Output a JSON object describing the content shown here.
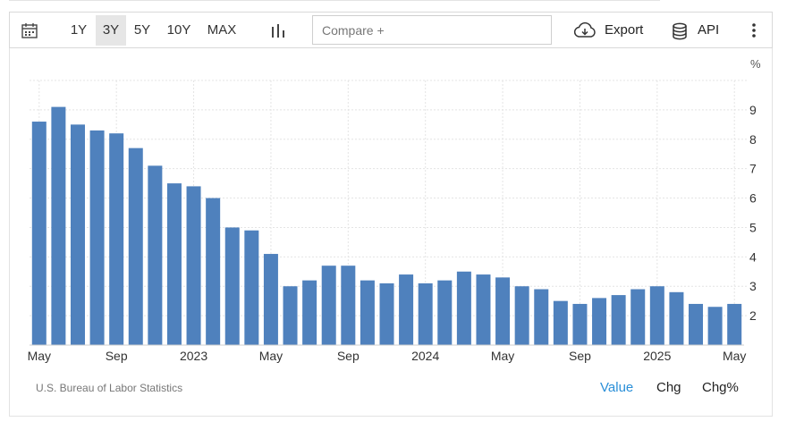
{
  "toolbar": {
    "calendar_icon": "calendar-icon",
    "ranges": [
      "1Y",
      "3Y",
      "5Y",
      "10Y",
      "MAX"
    ],
    "active_range": "3Y",
    "chart_type_icon": "bar-chart-icon",
    "compare_placeholder": "Compare +",
    "export_label": "Export",
    "export_icon": "cloud-download-icon",
    "api_label": "API",
    "api_icon": "database-icon",
    "more_icon": "more-vertical-icon"
  },
  "source_label": "U.S. Bureau of Labor Statistics",
  "view_tabs": [
    "Value",
    "Chg",
    "Chg%"
  ],
  "active_view": "Value",
  "colors": {
    "bar": "#4f81bd",
    "active_tab": "#2a8fd8"
  },
  "chart_data": {
    "type": "bar",
    "title": "",
    "xlabel": "",
    "ylabel": "",
    "unit_label": "%",
    "x": [
      "2022-05",
      "2022-06",
      "2022-07",
      "2022-08",
      "2022-09",
      "2022-10",
      "2022-11",
      "2022-12",
      "2023-01",
      "2023-02",
      "2023-03",
      "2023-04",
      "2023-05",
      "2023-06",
      "2023-07",
      "2023-08",
      "2023-09",
      "2023-10",
      "2023-11",
      "2023-12",
      "2024-01",
      "2024-02",
      "2024-03",
      "2024-04",
      "2024-05",
      "2024-06",
      "2024-07",
      "2024-08",
      "2024-09",
      "2024-10",
      "2024-11",
      "2024-12",
      "2025-01",
      "2025-02",
      "2025-03",
      "2025-04",
      "2025-05"
    ],
    "values": [
      8.6,
      9.1,
      8.5,
      8.3,
      8.2,
      7.7,
      7.1,
      6.5,
      6.4,
      6.0,
      5.0,
      4.9,
      4.1,
      3.0,
      3.2,
      3.7,
      3.7,
      3.2,
      3.1,
      3.4,
      3.1,
      3.2,
      3.5,
      3.4,
      3.3,
      3.0,
      2.9,
      2.5,
      2.4,
      2.6,
      2.7,
      2.9,
      3.0,
      2.8,
      2.4,
      2.3,
      2.4
    ],
    "x_tick_labels": [
      {
        "x": "2022-05",
        "label": "May"
      },
      {
        "x": "2022-09",
        "label": "Sep"
      },
      {
        "x": "2023-01",
        "label": "2023"
      },
      {
        "x": "2023-05",
        "label": "May"
      },
      {
        "x": "2023-09",
        "label": "Sep"
      },
      {
        "x": "2024-01",
        "label": "2024"
      },
      {
        "x": "2024-05",
        "label": "May"
      },
      {
        "x": "2024-09",
        "label": "Sep"
      },
      {
        "x": "2025-01",
        "label": "2025"
      },
      {
        "x": "2025-05",
        "label": "May"
      }
    ],
    "y_ticks": [
      2,
      3,
      4,
      5,
      6,
      7,
      8,
      9
    ],
    "ylim": [
      1,
      10
    ],
    "grid": true,
    "legend": "none",
    "y_axis_side": "right"
  }
}
